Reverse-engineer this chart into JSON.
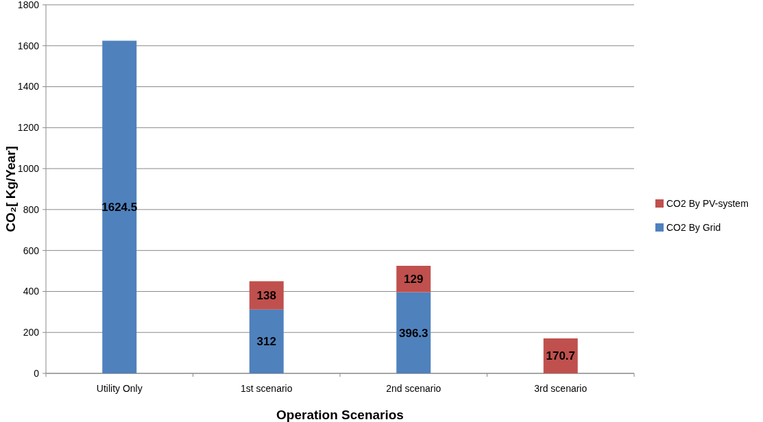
{
  "chart_data": {
    "type": "bar",
    "stacked": true,
    "xlabel": "Operation Scenarios",
    "ylabel": "CO₂[ Kg/Year]",
    "categories": [
      "Utility Only",
      "1st scenario",
      "2nd scenario",
      "3rd scenario"
    ],
    "series": [
      {
        "name": "CO2 By Grid",
        "color": "#4f81bd",
        "values": [
          1624.5,
          312,
          396.3,
          null
        ]
      },
      {
        "name": "CO2 By PV-system",
        "color": "#c0504d",
        "values": [
          null,
          138,
          129,
          170.7
        ]
      }
    ],
    "ylim": [
      0,
      1800
    ],
    "yticks": [
      0,
      200,
      400,
      600,
      800,
      1000,
      1200,
      1400,
      1600,
      1800
    ],
    "grid": "y",
    "legend": "right",
    "data_labels": true
  }
}
